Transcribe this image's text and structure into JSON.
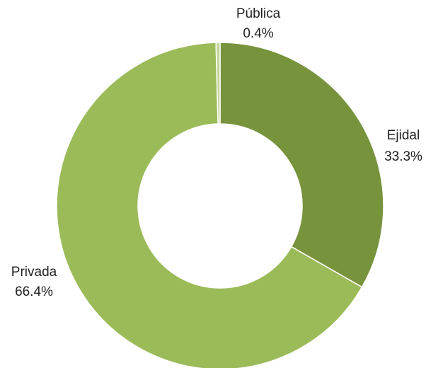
{
  "chart_data": {
    "type": "donut",
    "categories": [
      "Ejidal",
      "Privada",
      "Pública"
    ],
    "values": [
      33.3,
      66.4,
      0.4
    ],
    "value_labels": [
      "33.3%",
      "66.4%",
      "0.4%"
    ],
    "colors": [
      "#77933c",
      "#9bbb59",
      "#c3d69b"
    ]
  }
}
